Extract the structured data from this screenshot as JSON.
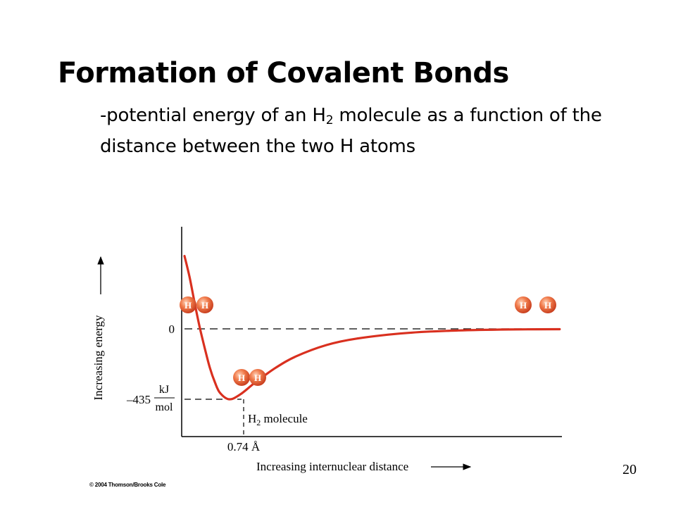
{
  "slide": {
    "title": "Formation of Covalent Bonds",
    "subtitle_pre": "-potential energy of an H",
    "subtitle_sub": "2",
    "subtitle_post": " molecule as a function of the distance between the two H atoms",
    "page_number": "20",
    "copyright": "© 2004 Thomson/Brooks Cole"
  },
  "chart_data": {
    "type": "line",
    "title": "",
    "xlabel": "Increasing internuclear distance",
    "ylabel": "Increasing energy",
    "series": [
      {
        "x": [
          0.3,
          0.35,
          0.4,
          0.45,
          0.5,
          0.55,
          0.6,
          0.65,
          0.74,
          0.85,
          1.0,
          1.2,
          1.4,
          1.7,
          2.0,
          2.5,
          3.0,
          3.5,
          4.0
        ],
        "y": [
          450,
          320,
          160,
          10,
          -120,
          -240,
          -330,
          -395,
          -435,
          -405,
          -330,
          -240,
          -170,
          -100,
          -60,
          -25,
          -10,
          -4,
          -2
        ]
      }
    ],
    "zero_label": "0",
    "minimum": {
      "energy_value": "–435",
      "energy_unit_num": "kJ",
      "energy_unit_den": "mol",
      "distance_label": "0.74 Å",
      "molecule_label_pre": "H",
      "molecule_label_sub": "2",
      "molecule_label_post": " molecule"
    },
    "atom_label": "H",
    "colors": {
      "curve": "#d9301f",
      "atom": "#e8552b",
      "axis": "#000000",
      "guide": "#000000"
    }
  }
}
